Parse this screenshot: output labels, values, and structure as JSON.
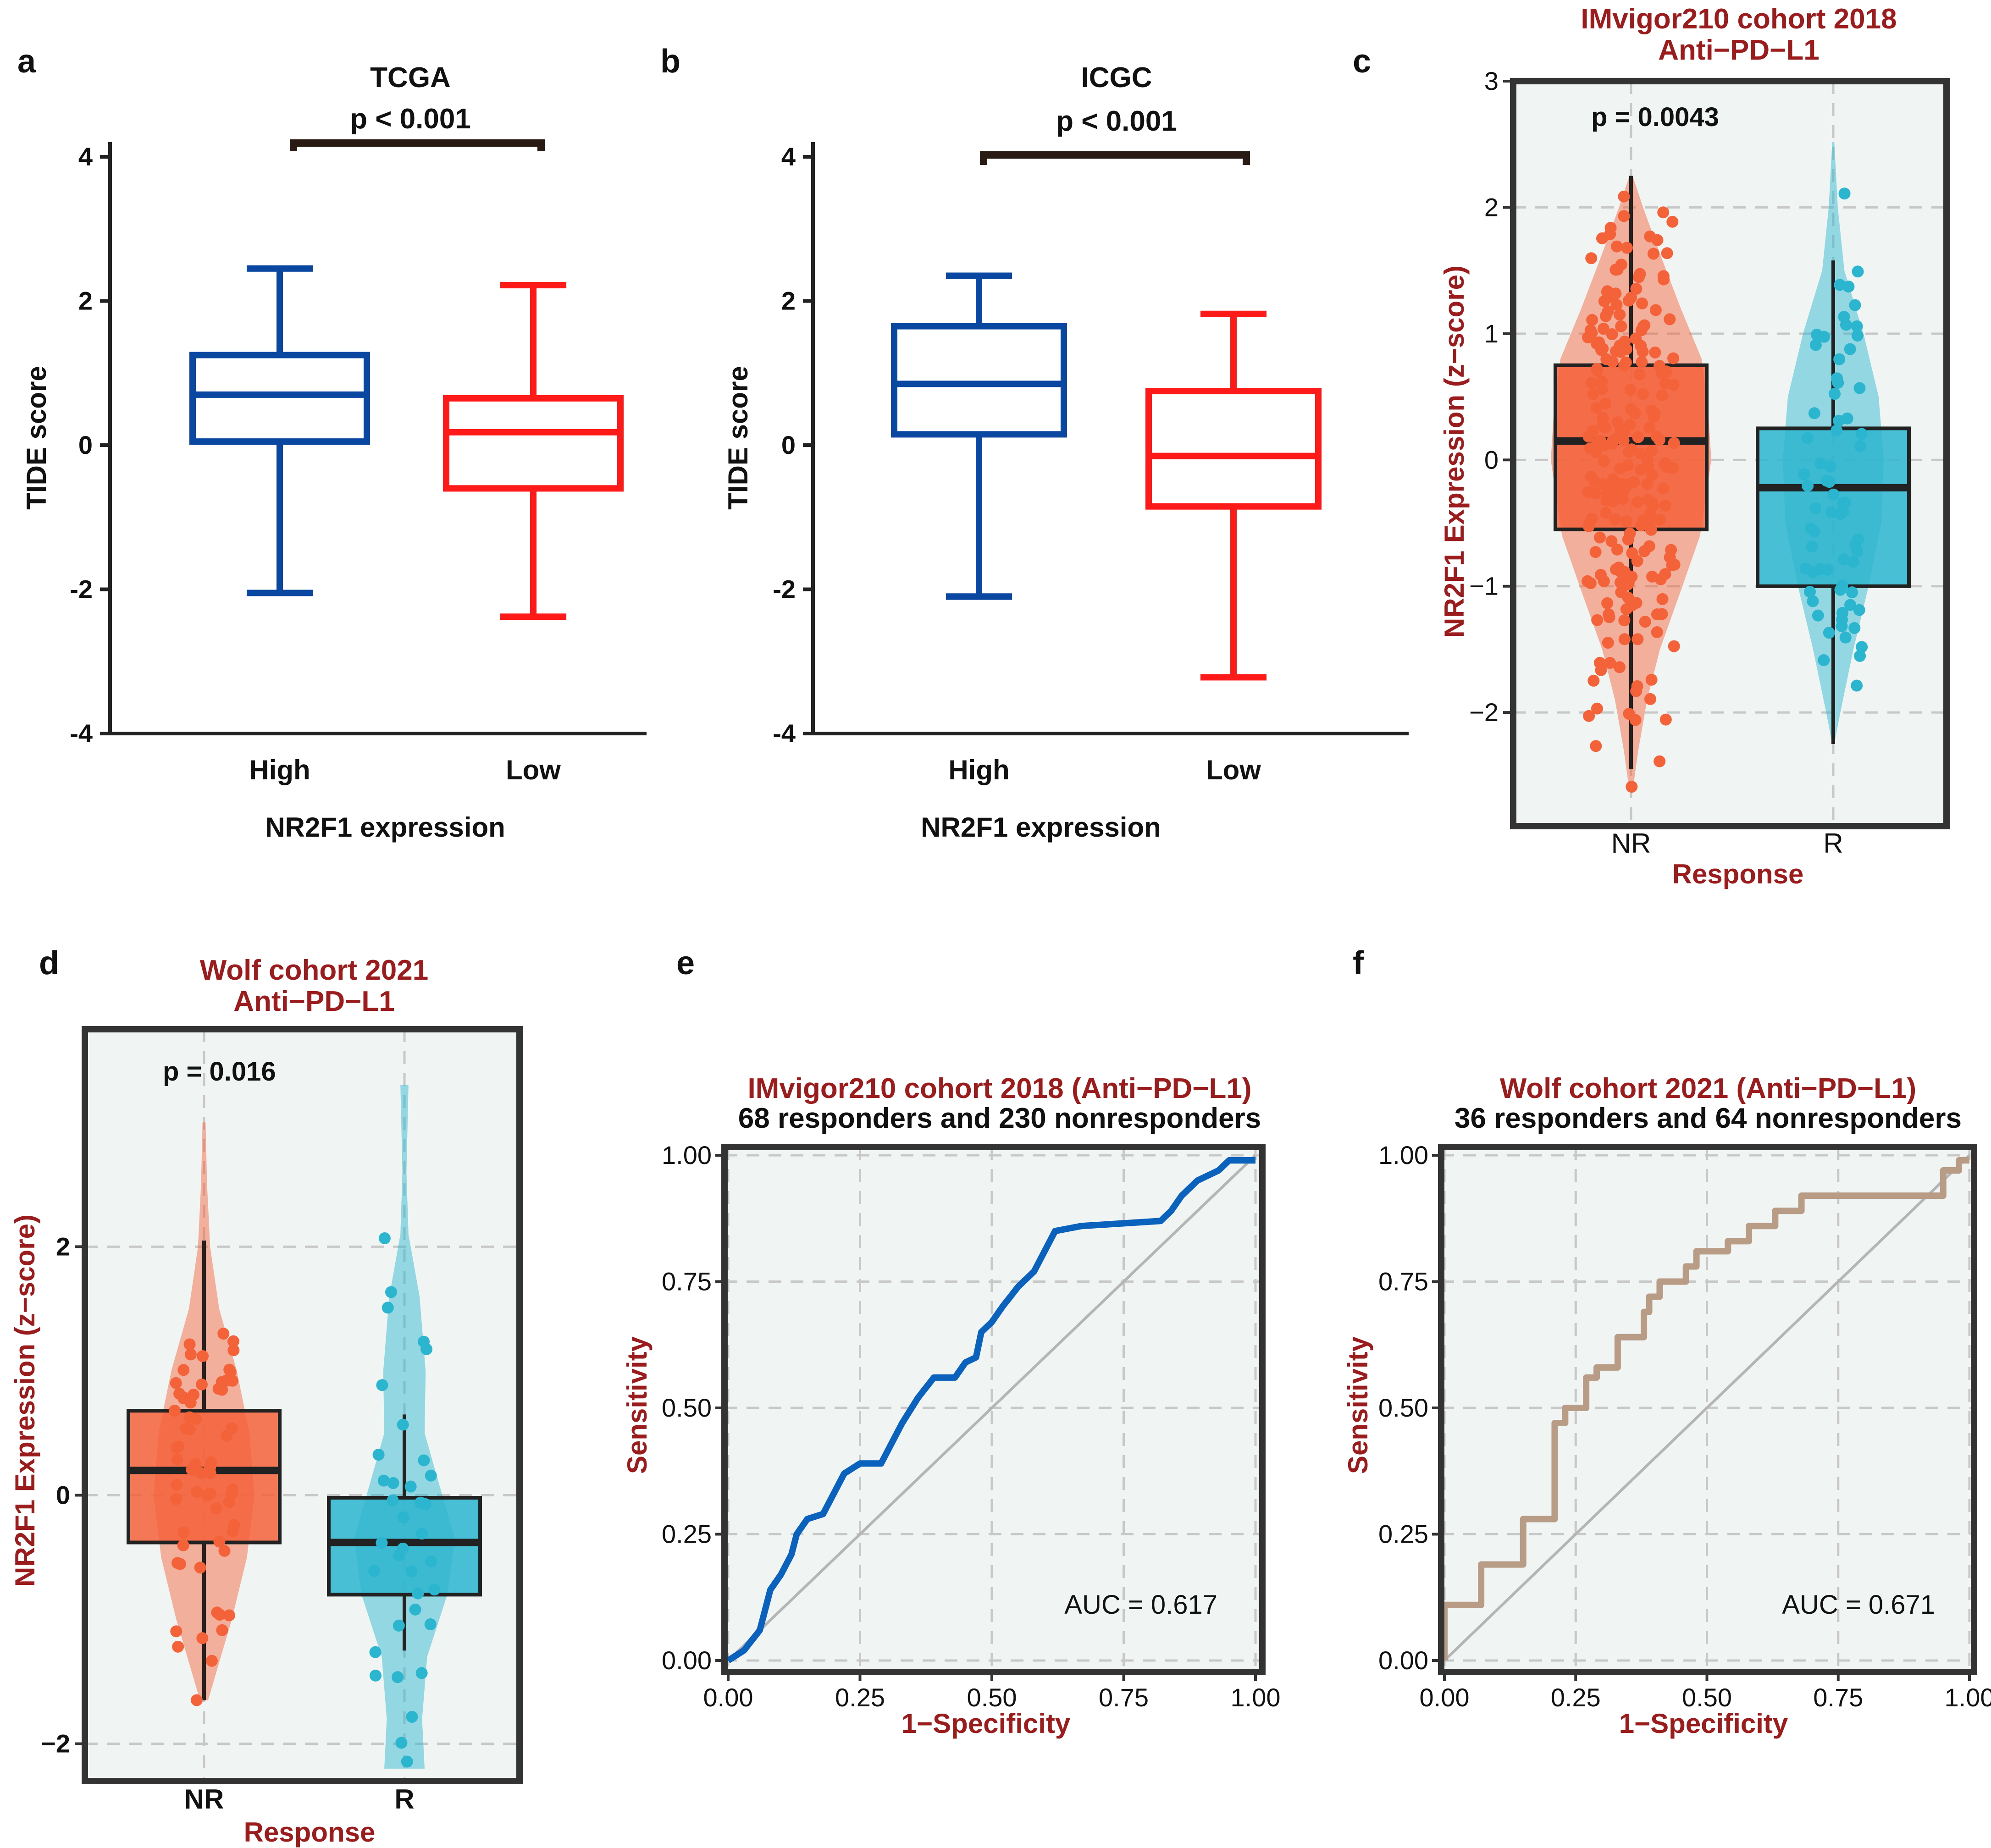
{
  "panels": {
    "a": {
      "label": "a"
    },
    "b": {
      "label": "b"
    },
    "c": {
      "label": "c"
    },
    "d": {
      "label": "d"
    },
    "e": {
      "label": "e"
    },
    "f": {
      "label": "f"
    }
  },
  "colors": {
    "high_box": "#0a47a0",
    "low_box": "#ff1a1a",
    "nr_fill": "#f4623a",
    "r_fill": "#2bb5cf",
    "title_red": "#9b1c1c",
    "roc_e": "#0a62bd",
    "roc_f": "#b89c86",
    "panel_bg": "#f0f5f4",
    "diag": "#b5b5b5"
  },
  "chart_data": [
    {
      "id": "a",
      "type": "box",
      "title": "TCGA",
      "pvalue": "p < 0.001",
      "xlabel": "NR2F1 expression",
      "ylabel": "TIDE score",
      "ylim": [
        -4,
        4
      ],
      "yticks": [
        "-4",
        "-2",
        "0",
        "2",
        "4"
      ],
      "yticks_values": [
        -4,
        -2,
        0,
        2,
        4
      ],
      "categories": [
        "High",
        "Low"
      ],
      "boxes": [
        {
          "name": "High",
          "min": -2.05,
          "q1": 0.05,
          "median": 0.7,
          "q3": 1.25,
          "max": 2.45
        },
        {
          "name": "Low",
          "min": -2.38,
          "q1": -0.6,
          "median": 0.18,
          "q3": 0.65,
          "max": 2.22
        }
      ]
    },
    {
      "id": "b",
      "type": "box",
      "title": "ICGC",
      "pvalue": "p < 0.001",
      "xlabel": "NR2F1 expression",
      "ylabel": "TIDE score",
      "ylim": [
        -4,
        4
      ],
      "yticks": [
        "-4",
        "-2",
        "0",
        "2",
        "4"
      ],
      "yticks_values": [
        -4,
        -2,
        0,
        2,
        4
      ],
      "categories": [
        "High",
        "Low"
      ],
      "boxes": [
        {
          "name": "High",
          "min": -2.1,
          "q1": 0.15,
          "median": 0.85,
          "q3": 1.65,
          "max": 2.35
        },
        {
          "name": "Low",
          "min": -3.22,
          "q1": -0.85,
          "median": -0.15,
          "q3": 0.75,
          "max": 1.82
        }
      ]
    },
    {
      "id": "c",
      "type": "violin",
      "title": [
        "IMvigor210 cohort 2018",
        "Anti−PD−L1"
      ],
      "pvalue": "p = 0.0043",
      "xlabel": "Response",
      "ylabel": "NR2F1 Expression (z−score)",
      "ylim": [
        -2.9,
        3.0
      ],
      "yticks": [
        "−2",
        "−1",
        "0",
        "1",
        "2",
        "3"
      ],
      "yticks_values": [
        -2,
        -1,
        0,
        1,
        2,
        3
      ],
      "categories": [
        "NR",
        "R"
      ],
      "groups": [
        {
          "name": "NR",
          "min": -2.45,
          "q1": -0.55,
          "median": 0.15,
          "q3": 0.75,
          "max": 2.25,
          "density": [
            [
              -2.62,
              0.02
            ],
            [
              -2.3,
              0.09
            ],
            [
              -1.9,
              0.2
            ],
            [
              -1.5,
              0.36
            ],
            [
              -1.0,
              0.64
            ],
            [
              -0.6,
              0.86
            ],
            [
              0.0,
              1.0
            ],
            [
              0.4,
              0.96
            ],
            [
              0.8,
              0.88
            ],
            [
              1.2,
              0.62
            ],
            [
              1.6,
              0.38
            ],
            [
              2.0,
              0.15
            ],
            [
              2.25,
              0.02
            ]
          ],
          "n_points": 230
        },
        {
          "name": "R",
          "min": -2.25,
          "q1": -1.0,
          "median": -0.22,
          "q3": 0.25,
          "max": 1.58,
          "density": [
            [
              -2.25,
              0.02
            ],
            [
              -2.0,
              0.14
            ],
            [
              -1.5,
              0.4
            ],
            [
              -1.0,
              0.7
            ],
            [
              -0.5,
              0.95
            ],
            [
              0.0,
              1.0
            ],
            [
              0.5,
              0.9
            ],
            [
              1.0,
              0.6
            ],
            [
              1.5,
              0.22
            ],
            [
              2.0,
              0.09
            ],
            [
              2.52,
              0.02
            ]
          ],
          "n_points": 68
        }
      ]
    },
    {
      "id": "d",
      "type": "violin",
      "title": [
        "Wolf cohort 2021",
        "Anti−PD−L1"
      ],
      "pvalue": "p = 0.016",
      "xlabel": "Response",
      "ylabel": "NR2F1 Expression (z−score)",
      "ylim": [
        -2.3,
        3.75
      ],
      "yticks": [
        "−2",
        "0",
        "2"
      ],
      "yticks_values": [
        -2,
        0,
        2
      ],
      "categories": [
        "NR",
        "R"
      ],
      "groups": [
        {
          "name": "NR",
          "min": -1.65,
          "q1": -0.38,
          "median": 0.2,
          "q3": 0.68,
          "max": 2.05,
          "density": [
            [
              -1.65,
              0.08
            ],
            [
              -1.0,
              0.55
            ],
            [
              -0.5,
              0.85
            ],
            [
              0.0,
              1.0
            ],
            [
              0.5,
              0.9
            ],
            [
              1.0,
              0.65
            ],
            [
              1.5,
              0.3
            ],
            [
              2.0,
              0.12
            ],
            [
              2.5,
              0.06
            ],
            [
              3.0,
              0.03
            ]
          ],
          "n_points": 64
        },
        {
          "name": "R",
          "min": -1.25,
          "q1": -0.8,
          "median": -0.38,
          "q3": -0.02,
          "max": 0.65,
          "density": [
            [
              -2.2,
              0.4
            ],
            [
              -1.8,
              0.35
            ],
            [
              -1.3,
              0.45
            ],
            [
              -0.8,
              0.85
            ],
            [
              -0.35,
              1.0
            ],
            [
              0.0,
              0.75
            ],
            [
              0.5,
              0.4
            ],
            [
              1.0,
              0.42
            ],
            [
              1.6,
              0.3
            ],
            [
              2.1,
              0.08
            ],
            [
              2.6,
              0.04
            ],
            [
              3.3,
              0.08
            ]
          ],
          "n_points": 36
        }
      ]
    },
    {
      "id": "e",
      "type": "roc",
      "title": [
        "IMvigor210 cohort 2018 (Anti−PD−L1)",
        "68 responders and 230 nonresponders"
      ],
      "xlabel": "1−Specificity",
      "ylabel": "Sensitivity",
      "auc": "AUC = 0.617",
      "xlim": [
        0,
        1
      ],
      "ylim": [
        0,
        1
      ],
      "ticks": [
        "0.00",
        "0.25",
        "0.50",
        "0.75",
        "1.00"
      ],
      "ticks_values": [
        0,
        0.25,
        0.5,
        0.75,
        1
      ],
      "roc": [
        [
          0,
          0
        ],
        [
          0.03,
          0.02
        ],
        [
          0.06,
          0.06
        ],
        [
          0.07,
          0.1
        ],
        [
          0.08,
          0.14
        ],
        [
          0.1,
          0.17
        ],
        [
          0.12,
          0.21
        ],
        [
          0.13,
          0.25
        ],
        [
          0.15,
          0.28
        ],
        [
          0.18,
          0.29
        ],
        [
          0.2,
          0.33
        ],
        [
          0.22,
          0.37
        ],
        [
          0.25,
          0.39
        ],
        [
          0.29,
          0.39
        ],
        [
          0.31,
          0.43
        ],
        [
          0.33,
          0.47
        ],
        [
          0.36,
          0.52
        ],
        [
          0.39,
          0.56
        ],
        [
          0.43,
          0.56
        ],
        [
          0.45,
          0.59
        ],
        [
          0.47,
          0.6
        ],
        [
          0.48,
          0.65
        ],
        [
          0.5,
          0.67
        ],
        [
          0.52,
          0.7
        ],
        [
          0.55,
          0.74
        ],
        [
          0.58,
          0.77
        ],
        [
          0.6,
          0.81
        ],
        [
          0.62,
          0.85
        ],
        [
          0.67,
          0.86
        ],
        [
          0.82,
          0.87
        ],
        [
          0.84,
          0.89
        ],
        [
          0.86,
          0.92
        ],
        [
          0.89,
          0.95
        ],
        [
          0.93,
          0.97
        ],
        [
          0.95,
          0.99
        ],
        [
          1,
          0.99
        ]
      ]
    },
    {
      "id": "f",
      "type": "roc",
      "title": [
        "Wolf cohort 2021 (Anti−PD−L1)",
        "36 responders and 64 nonresponders"
      ],
      "xlabel": "1−Specificity",
      "ylabel": "Sensitivity",
      "auc": "AUC = 0.671",
      "xlim": [
        0,
        1
      ],
      "ylim": [
        0,
        1
      ],
      "ticks": [
        "0.00",
        "0.25",
        "0.50",
        "0.75",
        "1.00"
      ],
      "ticks_values": [
        0,
        0.25,
        0.5,
        0.75,
        1
      ],
      "roc": [
        [
          0,
          0
        ],
        [
          0,
          0.11
        ],
        [
          0.07,
          0.11
        ],
        [
          0.07,
          0.19
        ],
        [
          0.15,
          0.19
        ],
        [
          0.15,
          0.28
        ],
        [
          0.21,
          0.28
        ],
        [
          0.21,
          0.47
        ],
        [
          0.23,
          0.47
        ],
        [
          0.23,
          0.5
        ],
        [
          0.27,
          0.5
        ],
        [
          0.27,
          0.56
        ],
        [
          0.29,
          0.56
        ],
        [
          0.29,
          0.58
        ],
        [
          0.33,
          0.58
        ],
        [
          0.33,
          0.64
        ],
        [
          0.38,
          0.64
        ],
        [
          0.38,
          0.69
        ],
        [
          0.39,
          0.69
        ],
        [
          0.39,
          0.72
        ],
        [
          0.41,
          0.72
        ],
        [
          0.41,
          0.75
        ],
        [
          0.46,
          0.75
        ],
        [
          0.46,
          0.78
        ],
        [
          0.48,
          0.78
        ],
        [
          0.48,
          0.81
        ],
        [
          0.54,
          0.81
        ],
        [
          0.54,
          0.83
        ],
        [
          0.58,
          0.83
        ],
        [
          0.58,
          0.86
        ],
        [
          0.63,
          0.86
        ],
        [
          0.63,
          0.89
        ],
        [
          0.68,
          0.89
        ],
        [
          0.68,
          0.92
        ],
        [
          0.95,
          0.92
        ],
        [
          0.95,
          0.97
        ],
        [
          0.98,
          0.97
        ],
        [
          0.98,
          0.99
        ],
        [
          1,
          0.99
        ]
      ]
    }
  ]
}
